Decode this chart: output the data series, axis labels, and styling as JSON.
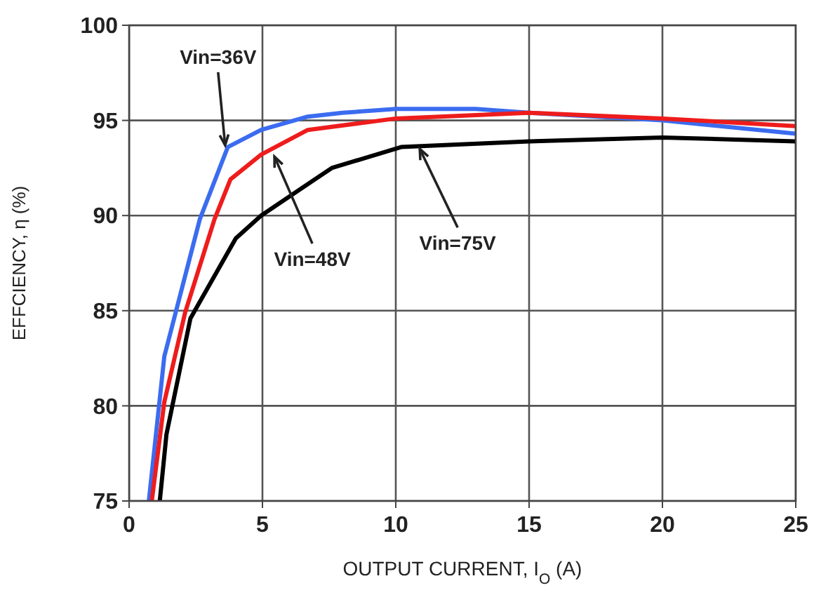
{
  "chart_data": {
    "type": "line",
    "xlabel": "OUTPUT CURRENT, I$_{O}$ (A)",
    "ylabel": "EFFCIENCY, η (%)",
    "xlim": [
      0,
      25
    ],
    "xticks": [
      0,
      5,
      10,
      15,
      20,
      25
    ],
    "ylim": [
      75,
      100
    ],
    "yticks": [
      75,
      80,
      85,
      90,
      95,
      100
    ],
    "grid": true,
    "line_style": "solid",
    "series": [
      {
        "color": "#3b6cf0",
        "x": [
          0.74,
          1.32,
          2.65,
          3.7,
          4.95,
          6.7,
          8,
          10,
          13,
          15,
          20,
          25
        ],
        "values": [
          75,
          82.6,
          89.8,
          93.6,
          94.5,
          95.2,
          95.4,
          95.6,
          95.6,
          95.4,
          95,
          94.3
        ]
      },
      {
        "color": "#ee1c1c",
        "x": [
          0.85,
          1.32,
          2.1,
          3.2,
          3.8,
          4.95,
          6.7,
          10,
          15,
          20,
          25
        ],
        "values": [
          75,
          80.2,
          84.9,
          89.8,
          91.9,
          93.2,
          94.5,
          95.1,
          95.4,
          95.1,
          94.7
        ]
      },
      {
        "color": "#000000",
        "x": [
          1.15,
          1.4,
          2.3,
          4,
          4.95,
          7.6,
          10.2,
          15,
          20,
          25
        ],
        "values": [
          75,
          78.5,
          84.6,
          88.8,
          90,
          92.5,
          93.6,
          93.9,
          94.1,
          93.9
        ]
      }
    ],
    "annotations": [
      {
        "text": "Vin=36V",
        "x": 3.6,
        "y": 93.7
      },
      {
        "text": "Vin=48V",
        "x": 5.45,
        "y": 93.1
      },
      {
        "text": "Vin=75V",
        "x": 10.9,
        "y": 93.5
      }
    ]
  }
}
